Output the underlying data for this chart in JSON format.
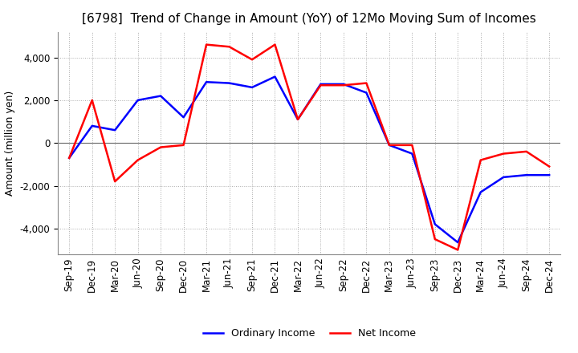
{
  "title": "[6798]  Trend of Change in Amount (YoY) of 12Mo Moving Sum of Incomes",
  "ylabel": "Amount (million yen)",
  "ylim": [
    -5200,
    5200
  ],
  "yticks": [
    -4000,
    -2000,
    0,
    2000,
    4000
  ],
  "x_labels": [
    "Sep-19",
    "Dec-19",
    "Mar-20",
    "Jun-20",
    "Sep-20",
    "Dec-20",
    "Mar-21",
    "Jun-21",
    "Sep-21",
    "Dec-21",
    "Mar-22",
    "Jun-22",
    "Sep-22",
    "Dec-22",
    "Mar-23",
    "Jun-23",
    "Sep-23",
    "Dec-23",
    "Mar-24",
    "Jun-24",
    "Sep-24",
    "Dec-24"
  ],
  "ordinary_income": [
    -700,
    800,
    600,
    2000,
    2200,
    1200,
    2850,
    2800,
    2600,
    3100,
    1100,
    2750,
    2750,
    2350,
    -100,
    -500,
    -3800,
    -4650,
    -2300,
    -1600,
    -1500,
    -1500
  ],
  "net_income": [
    -700,
    2000,
    -1800,
    -800,
    -200,
    -100,
    4600,
    4500,
    3900,
    4600,
    1100,
    2700,
    2700,
    2800,
    -100,
    -100,
    -4500,
    -5000,
    -800,
    -500,
    -400,
    -1100
  ],
  "ordinary_color": "#0000ff",
  "net_color": "#ff0000",
  "grid_color": "#aaaaaa",
  "background_color": "#ffffff",
  "title_fontsize": 11,
  "axis_fontsize": 9,
  "tick_fontsize": 8.5,
  "legend_fontsize": 9
}
